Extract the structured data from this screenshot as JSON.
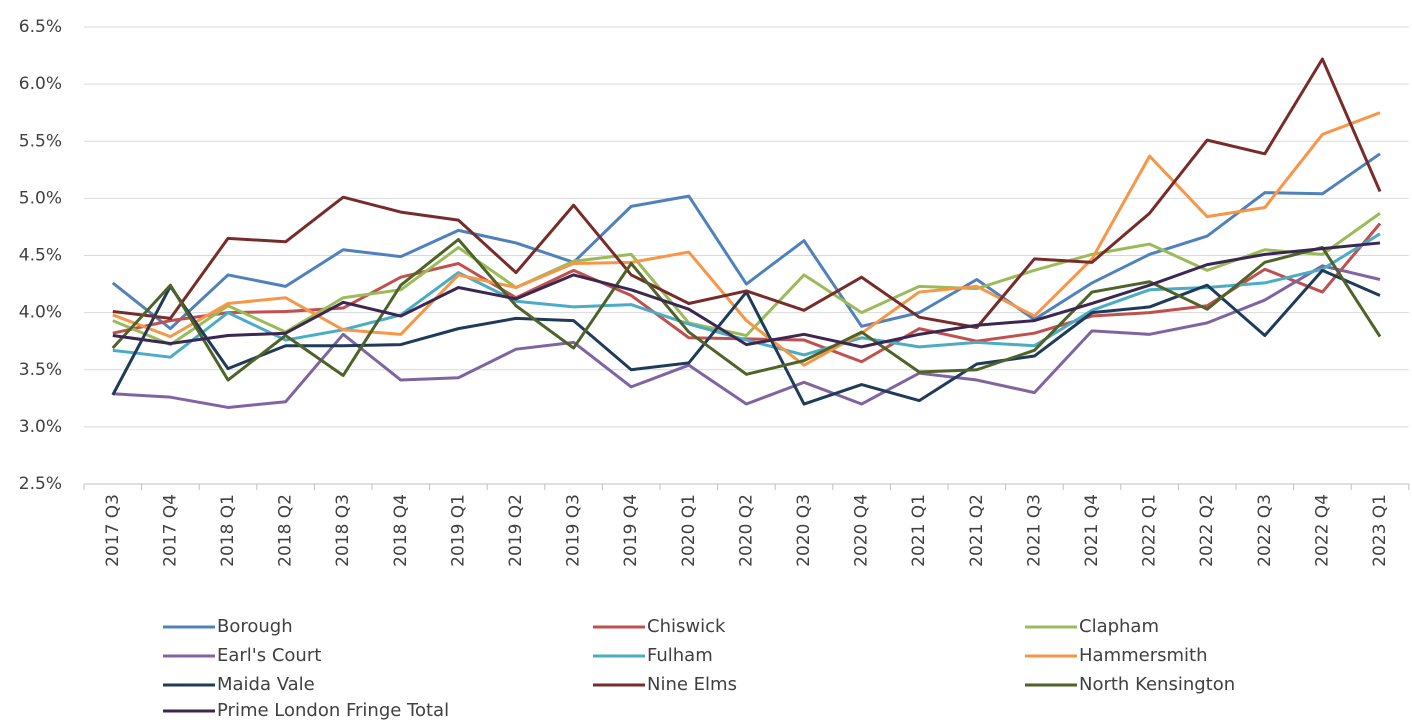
{
  "chart_data": {
    "type": "line",
    "categories": [
      "2017 Q3",
      "2017 Q4",
      "2018 Q1",
      "2018 Q2",
      "2018 Q3",
      "2018 Q4",
      "2019 Q1",
      "2019 Q2",
      "2019 Q3",
      "2019 Q4",
      "2020 Q1",
      "2020 Q2",
      "2020 Q3",
      "2020 Q4",
      "2021 Q1",
      "2021 Q2",
      "2021 Q3",
      "2021 Q4",
      "2022 Q1",
      "2022 Q2",
      "2022 Q3",
      "2022 Q4",
      "2023 Q1"
    ],
    "series": [
      {
        "name": "Borough",
        "color": "#4f81bd",
        "values": [
          4.26,
          3.86,
          4.33,
          4.23,
          4.55,
          4.49,
          4.72,
          4.61,
          4.44,
          4.93,
          5.02,
          4.25,
          4.63,
          3.88,
          4.0,
          4.29,
          3.94,
          4.26,
          4.51,
          4.67,
          5.05,
          5.04,
          5.39
        ]
      },
      {
        "name": "Chiswick",
        "color": "#c0504d",
        "values": [
          3.82,
          3.93,
          4.0,
          4.01,
          4.04,
          4.31,
          4.43,
          4.13,
          4.37,
          4.15,
          3.78,
          3.77,
          3.76,
          3.57,
          3.86,
          3.75,
          3.82,
          3.97,
          4.0,
          4.06,
          4.38,
          4.18,
          4.78
        ]
      },
      {
        "name": "Clapham",
        "color": "#9bbb59",
        "values": [
          3.93,
          3.72,
          4.06,
          3.83,
          4.13,
          4.2,
          4.57,
          4.22,
          4.45,
          4.51,
          3.91,
          3.8,
          4.33,
          4.0,
          4.23,
          4.21,
          4.37,
          4.51,
          4.6,
          4.37,
          4.55,
          4.51,
          4.87
        ]
      },
      {
        "name": "Earl's Court",
        "color": "#8064a2",
        "values": [
          3.29,
          3.26,
          3.17,
          3.22,
          3.81,
          3.41,
          3.43,
          3.68,
          3.74,
          3.35,
          3.54,
          3.2,
          3.39,
          3.2,
          3.47,
          3.41,
          3.3,
          3.84,
          3.81,
          3.91,
          4.11,
          4.41,
          4.29
        ]
      },
      {
        "name": "Fulham",
        "color": "#4bacc6",
        "values": [
          3.67,
          3.61,
          4.0,
          3.76,
          3.85,
          3.98,
          4.35,
          4.1,
          4.05,
          4.07,
          3.9,
          3.76,
          3.63,
          3.78,
          3.7,
          3.74,
          3.71,
          4.02,
          4.2,
          4.22,
          4.26,
          4.38,
          4.69
        ]
      },
      {
        "name": "Hammersmith",
        "color": "#f79646",
        "values": [
          3.98,
          3.79,
          4.08,
          4.13,
          3.85,
          3.81,
          4.33,
          4.22,
          4.43,
          4.44,
          4.53,
          3.93,
          3.54,
          3.82,
          4.18,
          4.23,
          3.97,
          4.47,
          5.37,
          4.84,
          4.92,
          5.56,
          5.75
        ]
      },
      {
        "name": "Maida Vale",
        "color": "#1f3b5a",
        "values": [
          3.28,
          4.23,
          3.51,
          3.71,
          3.71,
          3.72,
          3.86,
          3.95,
          3.93,
          3.5,
          3.56,
          4.18,
          3.2,
          3.37,
          3.23,
          3.55,
          3.62,
          4.0,
          4.05,
          4.24,
          3.8,
          4.37,
          4.15
        ]
      },
      {
        "name": "Nine Elms",
        "color": "#772c2a",
        "values": [
          4.01,
          3.95,
          4.65,
          4.62,
          5.01,
          4.88,
          4.81,
          4.35,
          4.94,
          4.33,
          4.08,
          4.19,
          4.02,
          4.31,
          3.96,
          3.87,
          4.47,
          4.44,
          4.87,
          5.51,
          5.39,
          6.22,
          5.06
        ]
      },
      {
        "name": "North Kensington",
        "color": "#4f6228",
        "values": [
          3.69,
          4.24,
          3.41,
          3.8,
          3.45,
          4.24,
          4.64,
          4.06,
          3.69,
          4.43,
          3.83,
          3.46,
          3.58,
          3.83,
          3.48,
          3.5,
          3.67,
          4.18,
          4.27,
          4.03,
          4.44,
          4.57,
          3.79
        ]
      },
      {
        "name": "Prime London Fringe Total",
        "color": "#3b2752",
        "values": [
          3.8,
          3.73,
          3.8,
          3.82,
          4.09,
          3.97,
          4.22,
          4.12,
          4.33,
          4.2,
          4.03,
          3.72,
          3.81,
          3.7,
          3.81,
          3.89,
          3.93,
          4.08,
          4.24,
          4.42,
          4.51,
          4.56,
          4.61
        ]
      }
    ],
    "ylim": [
      2.5,
      6.5
    ],
    "yticks": [
      {
        "value": 2.5,
        "label": "2.5%"
      },
      {
        "value": 3.0,
        "label": "3.0%"
      },
      {
        "value": 3.5,
        "label": "3.5%"
      },
      {
        "value": 4.0,
        "label": "4.0%"
      },
      {
        "value": 4.5,
        "label": "4.5%"
      },
      {
        "value": 5.0,
        "label": "5.0%"
      },
      {
        "value": 5.5,
        "label": "5.5%"
      },
      {
        "value": 6.0,
        "label": "6.0%"
      },
      {
        "value": 6.5,
        "label": "6.5%"
      }
    ],
    "grid": true,
    "legend": "bottom"
  }
}
